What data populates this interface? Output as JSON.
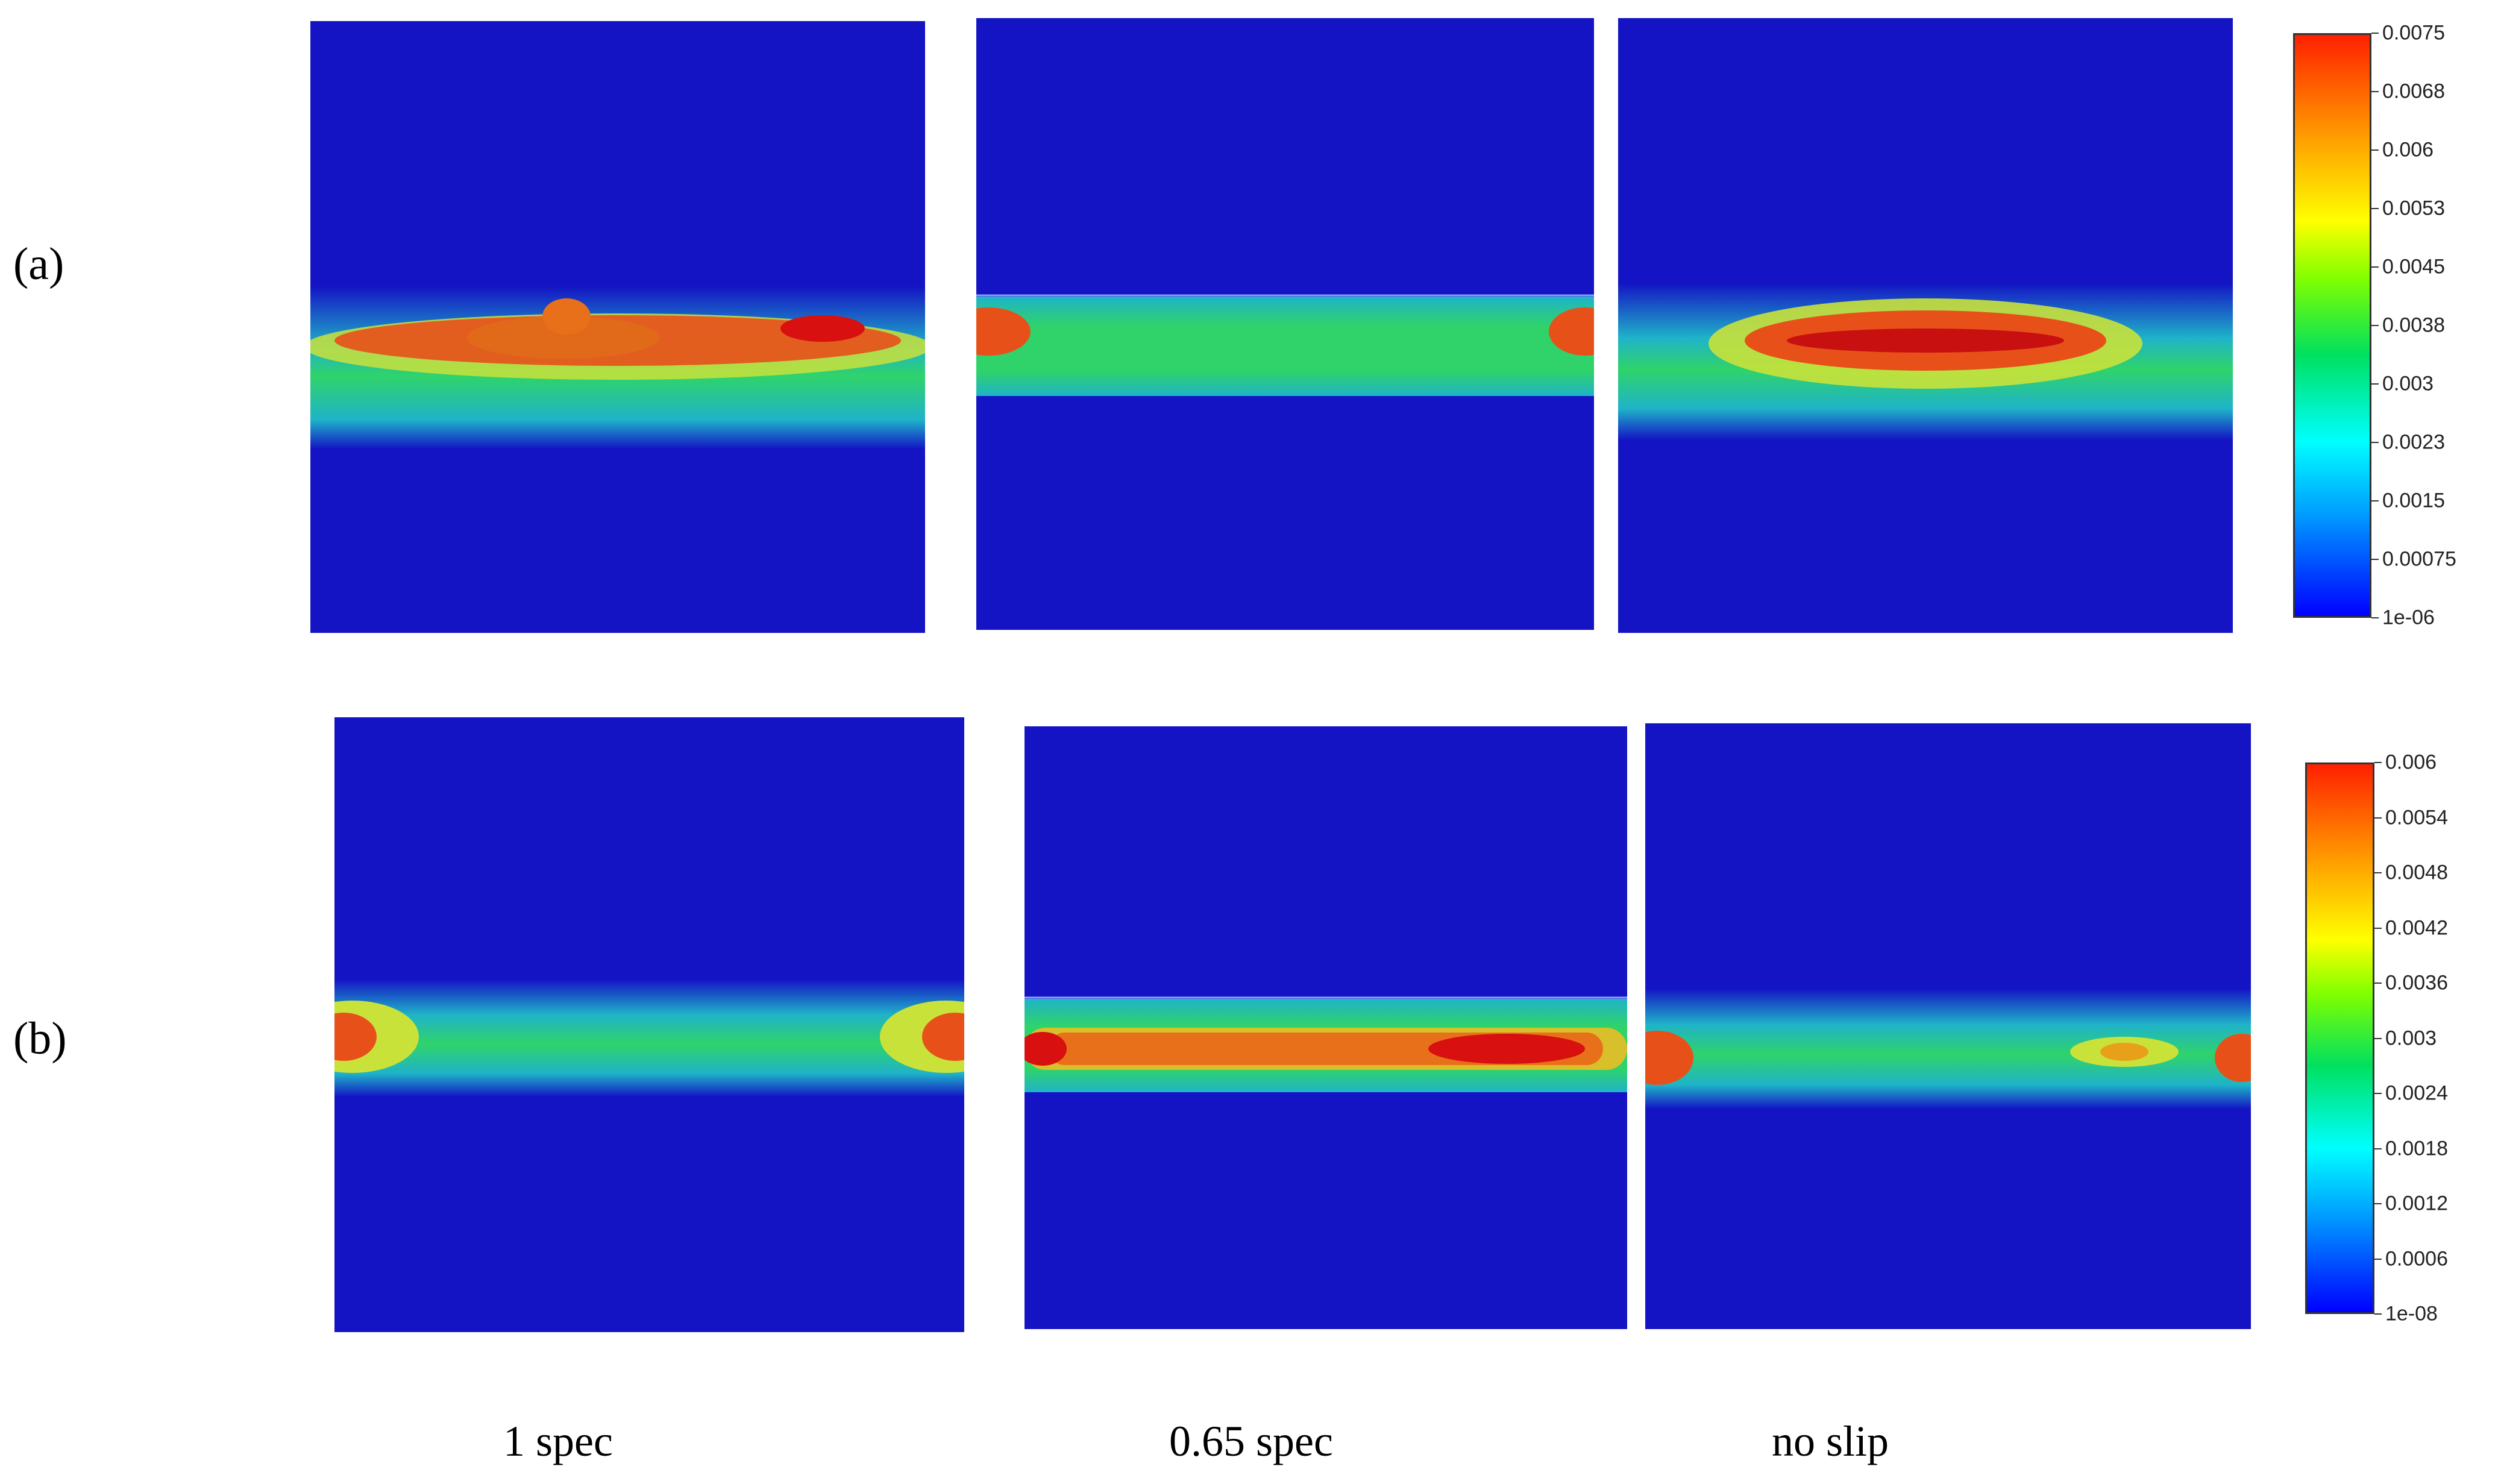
{
  "row_labels": [
    "(a)",
    "(b)"
  ],
  "column_labels": [
    "1 spec",
    "0.65 spec",
    "no slip"
  ],
  "colorbar_a": {
    "ticks": [
      "0.0075",
      "0.0068",
      "0.006",
      "0.0053",
      "0.0045",
      "0.0038",
      "0.003",
      "0.0023",
      "0.0015",
      "0.00075",
      "1e-06"
    ]
  },
  "colorbar_b": {
    "ticks": [
      "0.006",
      "0.0054",
      "0.0048",
      "0.0042",
      "0.0036",
      "0.003",
      "0.0024",
      "0.0018",
      "0.0012",
      "0.0006",
      "1e-08"
    ]
  },
  "colors": {
    "background_field": "#1414c4",
    "band_outer": "#1fb3c9",
    "band_mid": "#2fd36a",
    "band_hot": "#e8501a",
    "band_peak": "#d81010"
  }
}
